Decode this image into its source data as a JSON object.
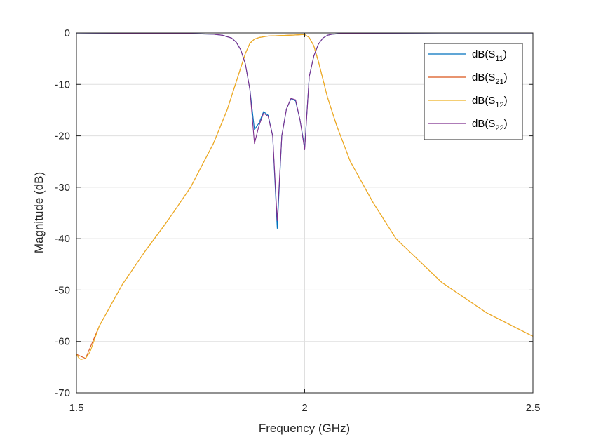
{
  "chart_data": {
    "type": "line",
    "xlabel": "Frequency (GHz)",
    "ylabel": "Magnitude (dB)",
    "xlim": [
      1.5,
      2.5
    ],
    "ylim": [
      -70,
      0
    ],
    "xticks": [
      1.5,
      2,
      2.5
    ],
    "xtick_labels": [
      "1.5",
      "2",
      "2.5"
    ],
    "yticks": [
      0,
      -10,
      -20,
      -30,
      -40,
      -50,
      -60,
      -70
    ],
    "ytick_labels": [
      "0",
      "-10",
      "-20",
      "-30",
      "-40",
      "-50",
      "-60",
      "-70"
    ],
    "grid": true,
    "legend_position": "top-right",
    "series": [
      {
        "name": "dB(S11)",
        "label_base": "dB(S",
        "label_sub": "11",
        "label_end": ")",
        "color": "#0072BD",
        "x": [
          1.5,
          1.6,
          1.7,
          1.75,
          1.8,
          1.82,
          1.84,
          1.85,
          1.86,
          1.87,
          1.88,
          1.89,
          1.9,
          1.91,
          1.92,
          1.93,
          1.94,
          1.95,
          1.96,
          1.97,
          1.98,
          1.99,
          2.0,
          2.01,
          2.02,
          2.03,
          2.04,
          2.05,
          2.06,
          2.08,
          2.1,
          2.2,
          2.3,
          2.5
        ],
        "y": [
          -0.02,
          -0.05,
          -0.1,
          -0.15,
          -0.25,
          -0.45,
          -1.0,
          -1.8,
          -3.3,
          -6.0,
          -11.0,
          -18.8,
          -17.5,
          -15.3,
          -16.0,
          -20.0,
          -38.0,
          -20.0,
          -14.8,
          -12.8,
          -13.2,
          -17.0,
          -22.3,
          -8.5,
          -4.5,
          -2.2,
          -1.0,
          -0.45,
          -0.25,
          -0.12,
          -0.07,
          -0.04,
          -0.02,
          -0.01
        ]
      },
      {
        "name": "dB(S21)",
        "label_base": "dB(S",
        "label_sub": "21",
        "label_end": ")",
        "color": "#D95319",
        "x": [
          1.5,
          1.52,
          1.55,
          1.6,
          1.65,
          1.7,
          1.75,
          1.8,
          1.83,
          1.85,
          1.87,
          1.88,
          1.89,
          1.9,
          1.92,
          1.95,
          1.98,
          2.0,
          2.01,
          2.02,
          2.03,
          2.05,
          2.07,
          2.1,
          2.15,
          2.2,
          2.3,
          2.4,
          2.5
        ],
        "y": [
          -62.5,
          -63.3,
          -57.0,
          -49.0,
          -42.5,
          -36.5,
          -30.0,
          -21.5,
          -15.0,
          -9.5,
          -4.0,
          -2.0,
          -1.2,
          -0.9,
          -0.6,
          -0.5,
          -0.4,
          -0.3,
          -0.9,
          -2.5,
          -5.5,
          -12.5,
          -18.0,
          -25.0,
          -33.0,
          -40.0,
          -48.5,
          -54.5,
          -59.0
        ]
      },
      {
        "name": "dB(S12)",
        "label_base": "dB(S",
        "label_sub": "12",
        "label_end": ")",
        "color": "#EDB120",
        "x": [
          1.5,
          1.505,
          1.51,
          1.52,
          1.53,
          1.55,
          1.6,
          1.65,
          1.7,
          1.75,
          1.8,
          1.83,
          1.85,
          1.87,
          1.88,
          1.89,
          1.9,
          1.92,
          1.95,
          1.98,
          2.0,
          2.01,
          2.02,
          2.03,
          2.05,
          2.07,
          2.1,
          2.15,
          2.2,
          2.3,
          2.4,
          2.5
        ],
        "y": [
          -62.5,
          -63.2,
          -63.5,
          -63.3,
          -62.0,
          -57.0,
          -49.0,
          -42.5,
          -36.5,
          -30.0,
          -21.5,
          -15.0,
          -9.5,
          -4.0,
          -2.0,
          -1.2,
          -0.9,
          -0.6,
          -0.5,
          -0.4,
          -0.3,
          -0.9,
          -2.5,
          -5.5,
          -12.5,
          -18.0,
          -25.0,
          -33.0,
          -40.0,
          -48.5,
          -54.5,
          -59.0
        ]
      },
      {
        "name": "dB(S22)",
        "label_base": "dB(S",
        "label_sub": "22",
        "label_end": ")",
        "color": "#7E2F8E",
        "x": [
          1.5,
          1.6,
          1.7,
          1.75,
          1.8,
          1.82,
          1.84,
          1.85,
          1.86,
          1.87,
          1.88,
          1.89,
          1.9,
          1.91,
          1.92,
          1.93,
          1.94,
          1.95,
          1.96,
          1.97,
          1.98,
          1.99,
          2.0,
          2.01,
          2.02,
          2.03,
          2.04,
          2.05,
          2.06,
          2.08,
          2.1,
          2.2,
          2.3,
          2.5
        ],
        "y": [
          -0.02,
          -0.05,
          -0.1,
          -0.15,
          -0.25,
          -0.45,
          -1.0,
          -1.8,
          -3.3,
          -6.0,
          -11.0,
          -21.5,
          -18.0,
          -15.6,
          -16.2,
          -20.0,
          -36.5,
          -20.0,
          -14.8,
          -12.7,
          -13.0,
          -17.0,
          -22.7,
          -8.5,
          -4.5,
          -2.2,
          -1.0,
          -0.45,
          -0.25,
          -0.12,
          -0.07,
          -0.04,
          -0.02,
          -0.01
        ]
      }
    ]
  }
}
